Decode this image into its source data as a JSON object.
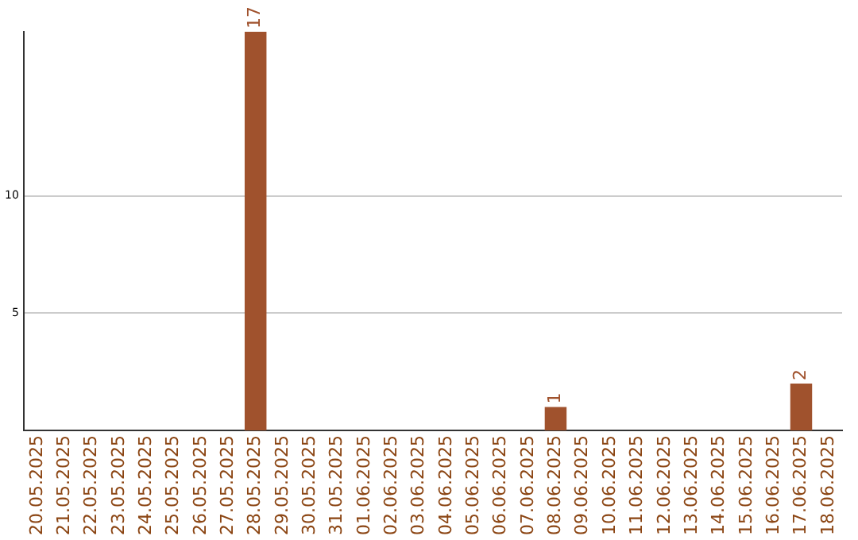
{
  "chart_data": {
    "type": "bar",
    "categories": [
      "20.05.2025",
      "21.05.2025",
      "22.05.2025",
      "23.05.2025",
      "24.05.2025",
      "25.05.2025",
      "26.05.2025",
      "27.05.2025",
      "28.05.2025",
      "29.05.2025",
      "30.05.2025",
      "31.05.2025",
      "01.06.2025",
      "02.06.2025",
      "03.06.2025",
      "04.06.2025",
      "05.06.2025",
      "06.06.2025",
      "07.06.2025",
      "08.06.2025",
      "09.06.2025",
      "10.06.2025",
      "11.06.2025",
      "12.06.2025",
      "13.06.2025",
      "14.06.2025",
      "15.06.2025",
      "16.06.2025",
      "17.06.2025",
      "18.06.2025"
    ],
    "values": [
      0,
      0,
      0,
      0,
      0,
      0,
      0,
      0,
      17,
      0,
      0,
      0,
      0,
      0,
      0,
      0,
      0,
      0,
      0,
      1,
      0,
      0,
      0,
      0,
      0,
      0,
      0,
      0,
      2,
      0
    ],
    "value_labels": [
      null,
      null,
      null,
      null,
      null,
      null,
      null,
      null,
      "17",
      null,
      null,
      null,
      null,
      null,
      null,
      null,
      null,
      null,
      null,
      "1",
      null,
      null,
      null,
      null,
      null,
      null,
      null,
      null,
      "2",
      null
    ],
    "color": "#a0522d",
    "ylim": [
      0,
      17
    ],
    "yticks": [
      5,
      10
    ],
    "grid": "y",
    "legend": false
  }
}
